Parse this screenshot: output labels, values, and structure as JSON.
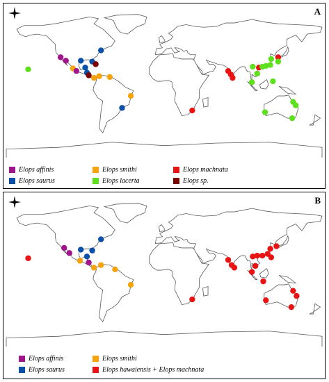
{
  "colors": {
    "affinis": "#a0148c",
    "saurus": "#0a4fa8",
    "smithi": "#f5a30f",
    "machnata": "#e81414",
    "lacerta": "#5fe01f",
    "sp": "#7a0000",
    "land": "#ffffff",
    "stroke": "#5a5a5a"
  },
  "panels": [
    {
      "letter": "A",
      "legend": [
        {
          "key": "affinis",
          "label": "Elops affinis"
        },
        {
          "key": "smithi",
          "label": "Elops smithi"
        },
        {
          "key": "machnata",
          "label": "Elops machnata"
        },
        {
          "key": "saurus",
          "label": "Elops saurus"
        },
        {
          "key": "lacerta",
          "label": "Elops lacerta"
        },
        {
          "key": "sp",
          "label": "Elops sp."
        }
      ],
      "points": [
        {
          "key": "lacerta",
          "lon": -155,
          "lat": 19
        },
        {
          "key": "affinis",
          "lon": -118,
          "lat": 33
        },
        {
          "key": "affinis",
          "lon": -112,
          "lat": 29
        },
        {
          "key": "smithi",
          "lon": -104,
          "lat": 20
        },
        {
          "key": "affinis",
          "lon": -100,
          "lat": 17
        },
        {
          "key": "saurus",
          "lon": -95,
          "lat": 29
        },
        {
          "key": "saurus",
          "lon": -82,
          "lat": 28
        },
        {
          "key": "saurus",
          "lon": -72,
          "lat": 41
        },
        {
          "key": "sp",
          "lon": -78,
          "lat": 25
        },
        {
          "key": "saurus",
          "lon": -90,
          "lat": 21
        },
        {
          "key": "saurus",
          "lon": -88,
          "lat": 15
        },
        {
          "key": "sp",
          "lon": -86,
          "lat": 12
        },
        {
          "key": "smithi",
          "lon": -80,
          "lat": 9
        },
        {
          "key": "smithi",
          "lon": -74,
          "lat": 11
        },
        {
          "key": "smithi",
          "lon": -62,
          "lat": 10
        },
        {
          "key": "smithi",
          "lon": -38,
          "lat": -12
        },
        {
          "key": "saurus",
          "lon": -48,
          "lat": -26
        },
        {
          "key": "machnata",
          "lon": 32,
          "lat": -29
        },
        {
          "key": "machnata",
          "lon": 73,
          "lat": 17
        },
        {
          "key": "machnata",
          "lon": 76,
          "lat": 13
        },
        {
          "key": "machnata",
          "lon": 78,
          "lat": 9
        },
        {
          "key": "lacerta",
          "lon": 101,
          "lat": 22
        },
        {
          "key": "machnata",
          "lon": 108,
          "lat": 21
        },
        {
          "key": "lacerta",
          "lon": 112,
          "lat": 22
        },
        {
          "key": "lacerta",
          "lon": 116,
          "lat": 23
        },
        {
          "key": "lacerta",
          "lon": 122,
          "lat": 31
        },
        {
          "key": "lacerta",
          "lon": 121,
          "lat": 24
        },
        {
          "key": "machnata",
          "lon": 130,
          "lat": 33
        },
        {
          "key": "lacerta",
          "lon": 130,
          "lat": 28
        },
        {
          "key": "lacerta",
          "lon": 106,
          "lat": 14
        },
        {
          "key": "lacerta",
          "lon": 100,
          "lat": 4
        },
        {
          "key": "lacerta",
          "lon": 124,
          "lat": 5
        },
        {
          "key": "lacerta",
          "lon": 115,
          "lat": -31
        },
        {
          "key": "lacerta",
          "lon": 147,
          "lat": -19
        },
        {
          "key": "lacerta",
          "lon": 150,
          "lat": -23
        },
        {
          "key": "lacerta",
          "lon": 146,
          "lat": -38
        }
      ]
    },
    {
      "letter": "B",
      "legend": [
        {
          "key": "affinis",
          "label": "Elops affinis"
        },
        {
          "key": "smithi",
          "label": "Elops smithi"
        },
        {
          "key": "saurus",
          "label": "Elops saurus"
        },
        {
          "key": "machnata",
          "label": "Elops hawaiensis + Elops machnata"
        }
      ],
      "points": [
        {
          "key": "machnata",
          "lon": -155,
          "lat": 19
        },
        {
          "key": "affinis",
          "lon": -114,
          "lat": 31
        },
        {
          "key": "affinis",
          "lon": -108,
          "lat": 25
        },
        {
          "key": "saurus",
          "lon": -95,
          "lat": 29
        },
        {
          "key": "saurus",
          "lon": -82,
          "lat": 28
        },
        {
          "key": "saurus",
          "lon": -72,
          "lat": 41
        },
        {
          "key": "saurus",
          "lon": -88,
          "lat": 21
        },
        {
          "key": "smithi",
          "lon": -96,
          "lat": 16
        },
        {
          "key": "affinis",
          "lon": -86,
          "lat": 14
        },
        {
          "key": "smithi",
          "lon": -80,
          "lat": 8
        },
        {
          "key": "smithi",
          "lon": -72,
          "lat": 11
        },
        {
          "key": "smithi",
          "lon": -56,
          "lat": 6
        },
        {
          "key": "smithi",
          "lon": -38,
          "lat": -12
        },
        {
          "key": "machnata",
          "lon": 32,
          "lat": -29
        },
        {
          "key": "machnata",
          "lon": 73,
          "lat": 17
        },
        {
          "key": "machnata",
          "lon": 77,
          "lat": 11
        },
        {
          "key": "machnata",
          "lon": 80,
          "lat": 8
        },
        {
          "key": "machnata",
          "lon": 101,
          "lat": 21
        },
        {
          "key": "machnata",
          "lon": 106,
          "lat": 22
        },
        {
          "key": "machnata",
          "lon": 112,
          "lat": 22
        },
        {
          "key": "machnata",
          "lon": 118,
          "lat": 24
        },
        {
          "key": "machnata",
          "lon": 121,
          "lat": 30
        },
        {
          "key": "machnata",
          "lon": 128,
          "lat": 33
        },
        {
          "key": "machnata",
          "lon": 122,
          "lat": 20
        },
        {
          "key": "machnata",
          "lon": 104,
          "lat": 10
        },
        {
          "key": "machnata",
          "lon": 100,
          "lat": 3
        },
        {
          "key": "machnata",
          "lon": 113,
          "lat": -8
        },
        {
          "key": "machnata",
          "lon": 116,
          "lat": -30
        },
        {
          "key": "machnata",
          "lon": 147,
          "lat": -19
        },
        {
          "key": "machnata",
          "lon": 151,
          "lat": -25
        },
        {
          "key": "machnata",
          "lon": 145,
          "lat": -38
        }
      ]
    }
  ]
}
